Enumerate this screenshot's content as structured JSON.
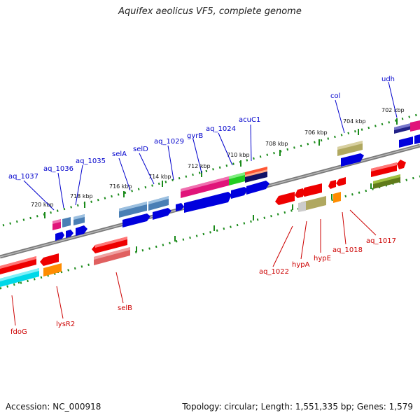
{
  "title": "Aquifex aeolicus VF5, complete genome",
  "footer": {
    "accession": "Accession: NC_000918",
    "summary": "Topology: circular; Length: 1,551,335 bp; Genes: 1,579"
  },
  "colors": {
    "backbone": "#777777",
    "tick": "#1a8a1a",
    "forward_label": "#0000cc",
    "reverse_label": "#cc0000"
  },
  "scale_labels": [
    "702 kbp",
    "704 kbp",
    "706 kbp",
    "708 kbp",
    "710 kbp",
    "712 kbp",
    "714 kbp",
    "716 kbp",
    "718 kbp",
    "720 kbp"
  ],
  "forward_genes": [
    "udh",
    "col",
    "acuC1",
    "aq_1024",
    "gyrB",
    "aq_1029",
    "selD",
    "selA",
    "aq_1035",
    "aq_1036",
    "aq_1037"
  ],
  "reverse_genes": [
    "aq_1017",
    "aq_1018",
    "hypE",
    "hypA",
    "aq_1022",
    "selB",
    "lysR2",
    "fdoG"
  ]
}
